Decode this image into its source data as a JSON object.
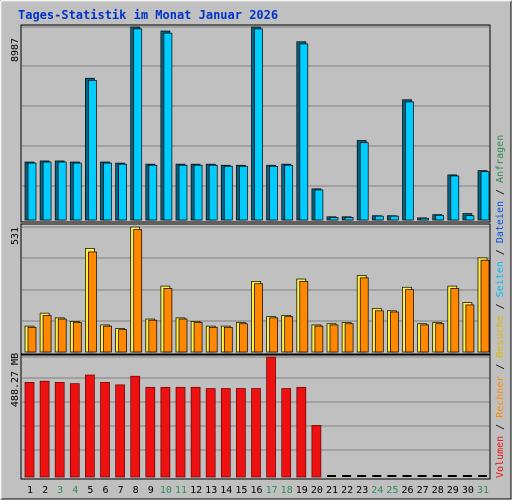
{
  "title": "Tages-Statistik im Monat Januar 2026",
  "colors": {
    "title": "#0033cc",
    "weekday_tick": "#000000",
    "weekend_tick": "#2e8b57",
    "panel_bg": "#c0c0c0",
    "gridline": "#808080",
    "cyan_front": "#00ccff",
    "cyan_back": "#006688",
    "orange_front": "#ff8800",
    "yellow_back": "#ffee44",
    "red_front": "#ee1111",
    "red_dark": "#660000"
  },
  "legend": {
    "volumen": "Volumen",
    "sep1": " / ",
    "rechner": "Rechner",
    "sep2": " / ",
    "besuche": "Besuche",
    "sep3": " / ",
    "seiten": "Seiten",
    "sep4": " / ",
    "dateien": "Dateien",
    "sep5": " / ",
    "anfragen": "Anfragen",
    "colors": {
      "volumen": "#ee1111",
      "rechner": "#ff8800",
      "besuche": "#ddbb00",
      "seiten": "#00bbee",
      "dateien": "#0055dd",
      "anfragen": "#2e8b57",
      "sep": "#000000"
    }
  },
  "chart_data": [
    {
      "type": "bar",
      "panel": "top",
      "ylabel": "8987",
      "ylim": [
        0,
        8987
      ],
      "categories": [
        "1",
        "2",
        "3",
        "4",
        "5",
        "6",
        "7",
        "8",
        "9",
        "10",
        "11",
        "12",
        "13",
        "14",
        "15",
        "16",
        "17",
        "18",
        "19",
        "20",
        "21",
        "22",
        "23",
        "24",
        "25",
        "26",
        "27",
        "28",
        "29",
        "30",
        "31"
      ],
      "series": [
        {
          "name": "Anfragen",
          "values": [
            2700,
            2750,
            2750,
            2700,
            6600,
            2700,
            2650,
            8987,
            2600,
            8800,
            2600,
            2600,
            2600,
            2550,
            2550,
            8987,
            2550,
            2600,
            8300,
            1450,
            150,
            150,
            3700,
            200,
            200,
            5600,
            100,
            250,
            2100,
            300,
            2300
          ]
        },
        {
          "name": "Dateien",
          "values": [
            2650,
            2700,
            2700,
            2650,
            6500,
            2650,
            2600,
            8900,
            2550,
            8700,
            2550,
            2550,
            2550,
            2500,
            2500,
            8900,
            2500,
            2550,
            8200,
            1400,
            120,
            120,
            3600,
            180,
            180,
            5500,
            80,
            220,
            2050,
            200,
            2250
          ]
        }
      ]
    },
    {
      "type": "bar",
      "panel": "middle",
      "ylabel": "531",
      "ylim": [
        0,
        531
      ],
      "categories": [
        "1",
        "2",
        "3",
        "4",
        "5",
        "6",
        "7",
        "8",
        "9",
        "10",
        "11",
        "12",
        "13",
        "14",
        "15",
        "16",
        "17",
        "18",
        "19",
        "20",
        "21",
        "22",
        "23",
        "24",
        "25",
        "26",
        "27",
        "28",
        "29",
        "30",
        "31"
      ],
      "series": [
        {
          "name": "Seiten",
          "values": [
            110,
            165,
            145,
            130,
            440,
            115,
            100,
            531,
            140,
            280,
            145,
            130,
            110,
            110,
            125,
            300,
            150,
            155,
            310,
            115,
            120,
            125,
            325,
            185,
            175,
            275,
            120,
            125,
            280,
            210,
            400
          ]
        },
        {
          "name": "Besuche",
          "values": [
            105,
            155,
            140,
            125,
            425,
            110,
            95,
            520,
            135,
            270,
            140,
            125,
            105,
            105,
            120,
            290,
            145,
            150,
            300,
            110,
            115,
            120,
            315,
            175,
            170,
            265,
            115,
            120,
            270,
            200,
            390
          ]
        }
      ]
    },
    {
      "type": "bar",
      "panel": "bottom",
      "ylabel": "488.27 MB",
      "ylim": [
        0,
        488.27
      ],
      "unit": "MB",
      "categories": [
        "1",
        "2",
        "3",
        "4",
        "5",
        "6",
        "7",
        "8",
        "9",
        "10",
        "11",
        "12",
        "13",
        "14",
        "15",
        "16",
        "17",
        "18",
        "19",
        "20",
        "21",
        "22",
        "23",
        "24",
        "25",
        "26",
        "27",
        "28",
        "29",
        "30",
        "31"
      ],
      "series": [
        {
          "name": "Volumen",
          "values": [
            385,
            390,
            385,
            380,
            415,
            385,
            375,
            410,
            365,
            365,
            365,
            365,
            360,
            360,
            360,
            360,
            488.27,
            360,
            365,
            210,
            0,
            0,
            0,
            0,
            0,
            0,
            0,
            0,
            0,
            0,
            0
          ]
        }
      ]
    }
  ],
  "x_ticks": [
    {
      "label": "1",
      "weekend": false
    },
    {
      "label": "2",
      "weekend": false
    },
    {
      "label": "3",
      "weekend": true
    },
    {
      "label": "4",
      "weekend": true
    },
    {
      "label": "5",
      "weekend": false
    },
    {
      "label": "6",
      "weekend": false
    },
    {
      "label": "7",
      "weekend": false
    },
    {
      "label": "8",
      "weekend": false
    },
    {
      "label": "9",
      "weekend": false
    },
    {
      "label": "10",
      "weekend": true
    },
    {
      "label": "11",
      "weekend": true
    },
    {
      "label": "12",
      "weekend": false
    },
    {
      "label": "13",
      "weekend": false
    },
    {
      "label": "14",
      "weekend": false
    },
    {
      "label": "15",
      "weekend": false
    },
    {
      "label": "16",
      "weekend": false
    },
    {
      "label": "17",
      "weekend": true
    },
    {
      "label": "18",
      "weekend": true
    },
    {
      "label": "19",
      "weekend": false
    },
    {
      "label": "20",
      "weekend": false
    },
    {
      "label": "21",
      "weekend": false
    },
    {
      "label": "22",
      "weekend": false
    },
    {
      "label": "23",
      "weekend": false
    },
    {
      "label": "24",
      "weekend": true
    },
    {
      "label": "25",
      "weekend": true
    },
    {
      "label": "26",
      "weekend": false
    },
    {
      "label": "27",
      "weekend": false
    },
    {
      "label": "28",
      "weekend": false
    },
    {
      "label": "29",
      "weekend": false
    },
    {
      "label": "30",
      "weekend": false
    },
    {
      "label": "31",
      "weekend": true
    }
  ]
}
